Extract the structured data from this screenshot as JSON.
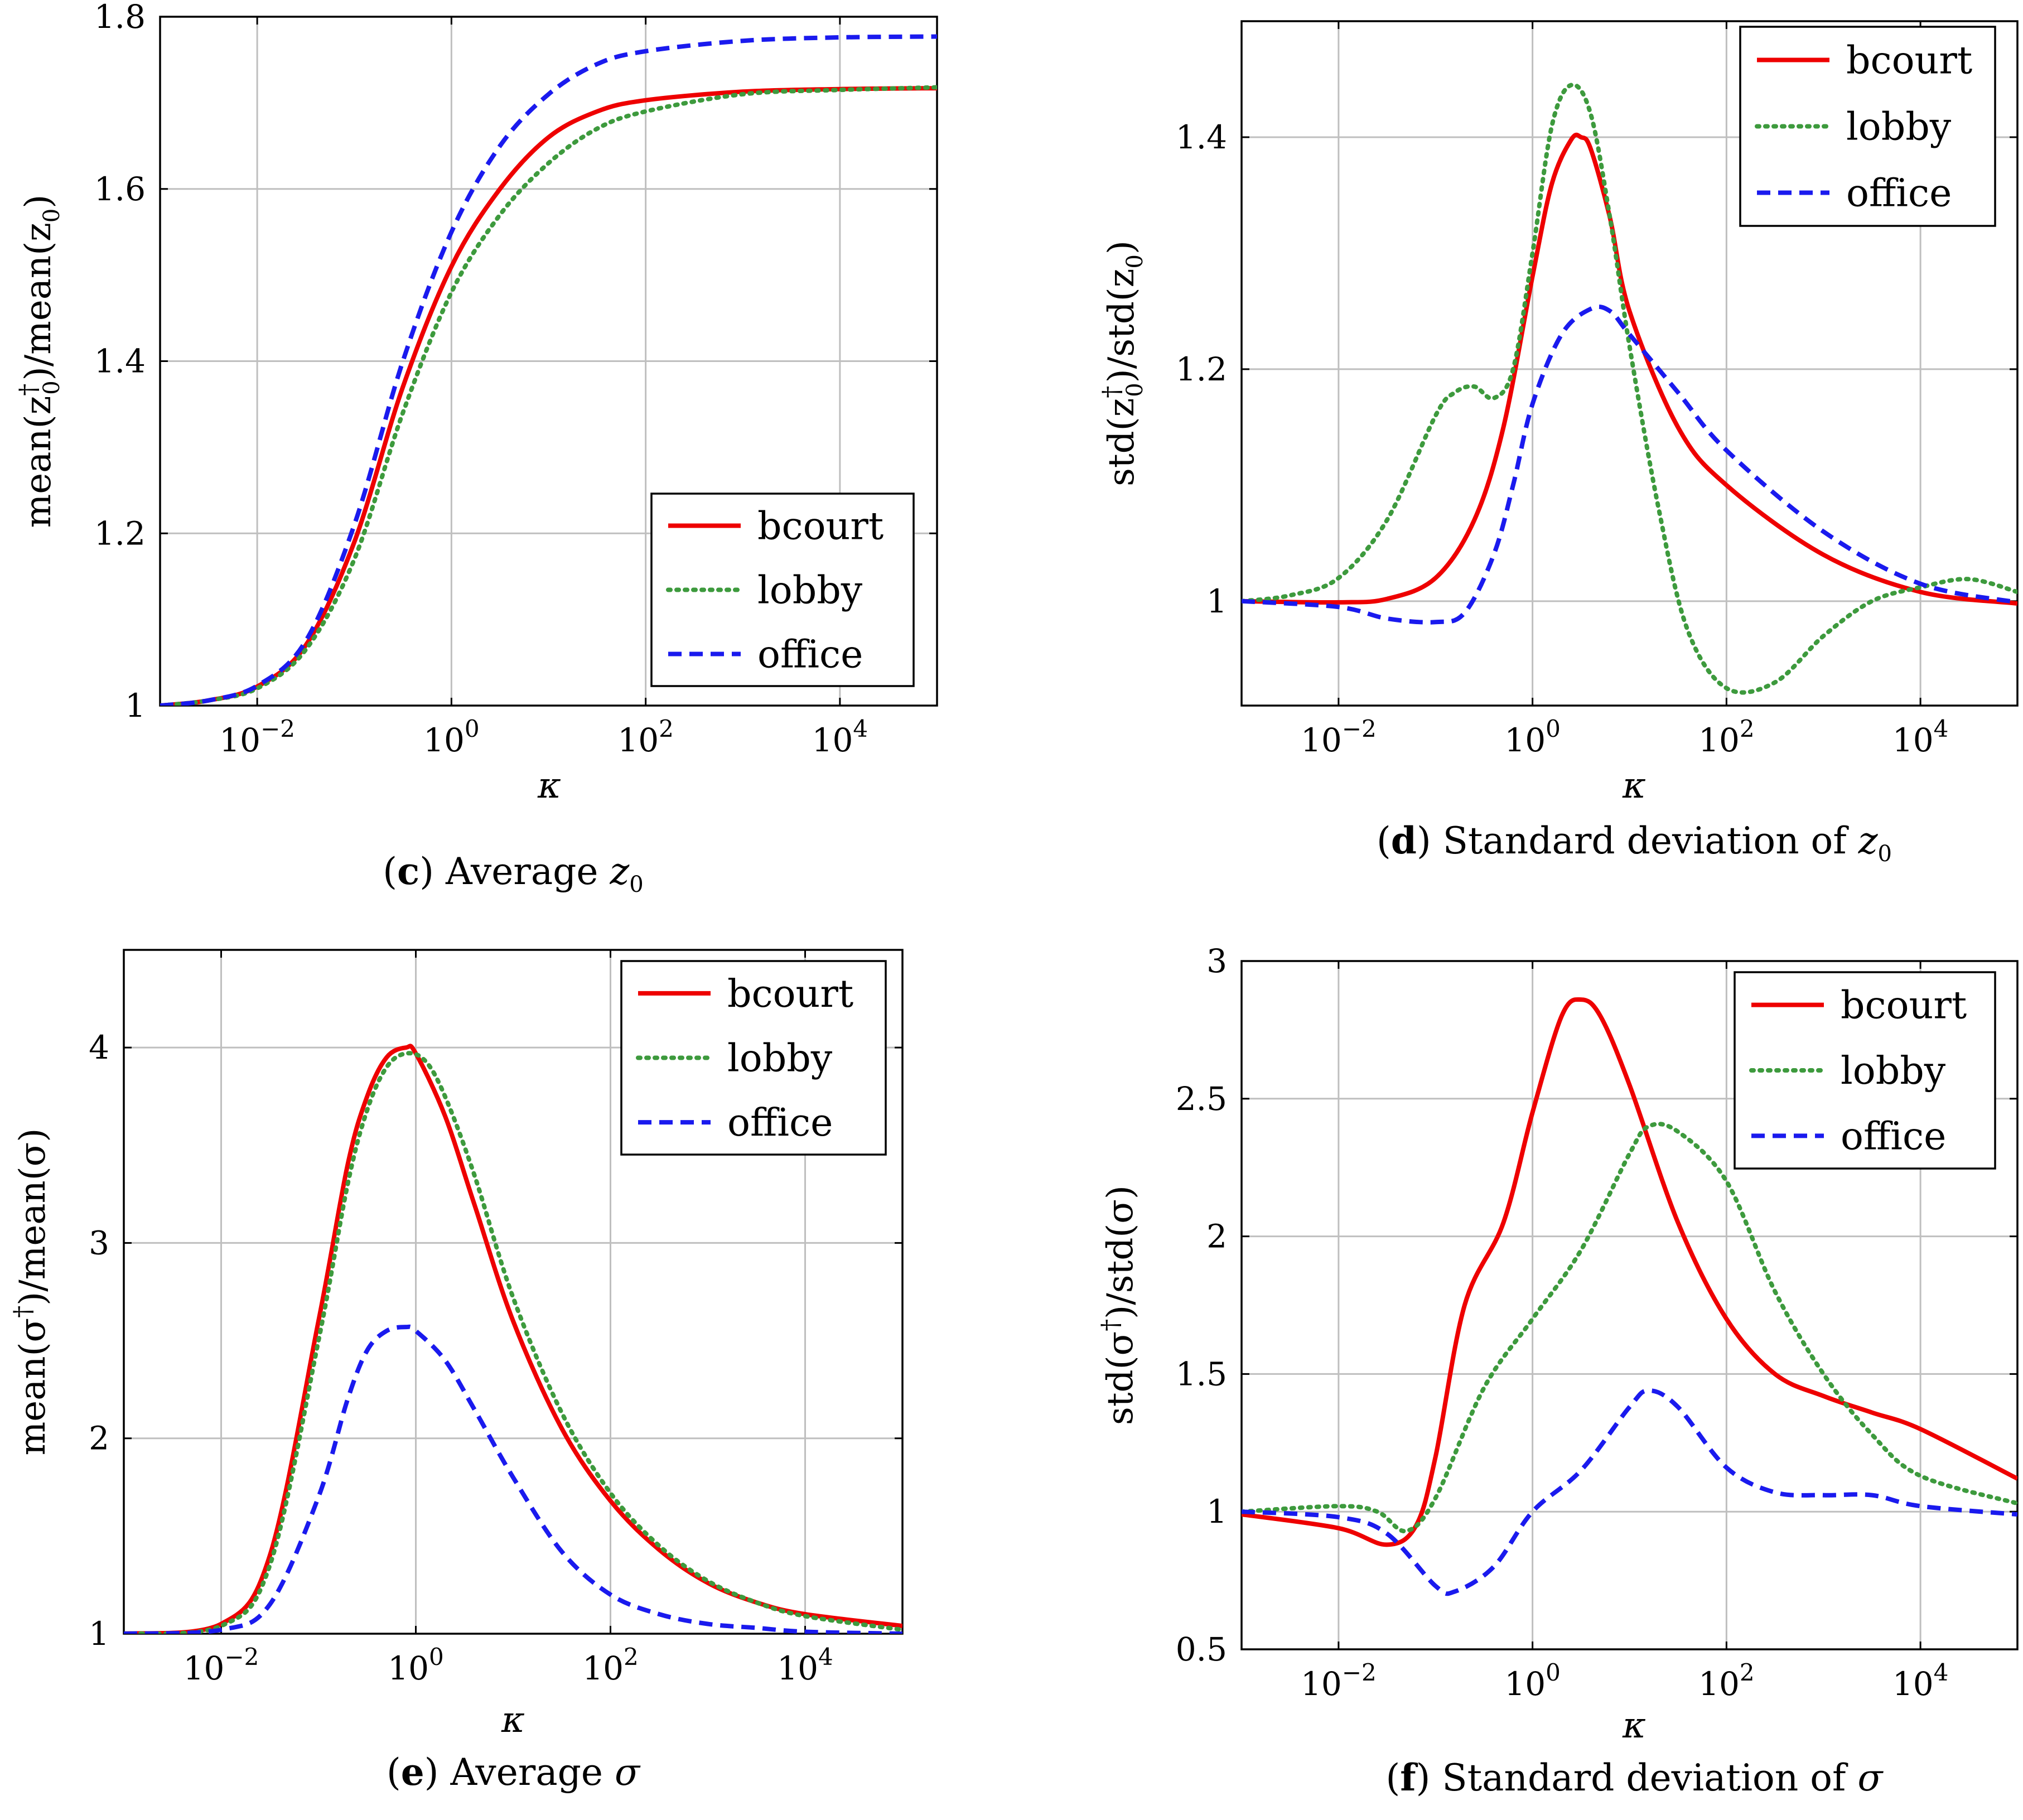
{
  "colors": {
    "bcourt": "#ee0000",
    "lobby": "#3d9a3d",
    "office": "#1a1aee"
  },
  "legend": [
    "bcourt",
    "lobby",
    "office"
  ],
  "chart_data": [
    {
      "id": "c",
      "type": "line",
      "caption_letter": "c",
      "caption_text": "Average z",
      "caption_sub": "0",
      "xlabel": "κ",
      "ylabel_pre": "mean(z",
      "ylabel_sub": "0",
      "ylabel_sup": "†",
      "ylabel_post": ")/mean(z",
      "ylabel_sub2": "0",
      "ylabel_end": ")",
      "x_scale": "log10",
      "xlim_exp": [
        -3,
        5
      ],
      "ylim": [
        1,
        1.8
      ],
      "x_ticks_exp": [
        -2,
        0,
        2,
        4
      ],
      "y_ticks": [
        1,
        1.2,
        1.4,
        1.6,
        1.8
      ],
      "y_tick_labels": [
        "1",
        "1.2",
        "1.4",
        "1.6",
        "1.8"
      ],
      "legend_position": "bottom-right",
      "series": [
        {
          "name": "bcourt",
          "style": "solid",
          "log10_x": [
            -3,
            -2.5,
            -2,
            -1.5,
            -1,
            -0.5,
            0,
            0.5,
            1,
            1.5,
            2,
            3,
            4,
            5
          ],
          "y": [
            1.0,
            1.006,
            1.022,
            1.07,
            1.19,
            1.37,
            1.51,
            1.6,
            1.66,
            1.69,
            1.703,
            1.713,
            1.716,
            1.717
          ]
        },
        {
          "name": "lobby",
          "style": "dotted",
          "log10_x": [
            -3,
            -2.5,
            -2,
            -1.5,
            -1,
            -0.5,
            0,
            0.5,
            1,
            1.5,
            2,
            3,
            4,
            5
          ],
          "y": [
            1.0,
            1.006,
            1.02,
            1.065,
            1.17,
            1.34,
            1.48,
            1.57,
            1.63,
            1.67,
            1.69,
            1.71,
            1.715,
            1.718
          ]
        },
        {
          "name": "office",
          "style": "dashed",
          "log10_x": [
            -3,
            -2.5,
            -2,
            -1.5,
            -1,
            -0.5,
            0,
            0.5,
            1,
            1.5,
            2,
            3,
            4,
            5
          ],
          "y": [
            1.0,
            1.006,
            1.023,
            1.075,
            1.21,
            1.4,
            1.55,
            1.65,
            1.71,
            1.745,
            1.76,
            1.772,
            1.776,
            1.777
          ]
        }
      ]
    },
    {
      "id": "d",
      "type": "line",
      "caption_letter": "d",
      "caption_text": "Standard deviation of z",
      "caption_sub": "0",
      "xlabel": "κ",
      "ylabel_pre": "std(z",
      "ylabel_sub": "0",
      "ylabel_sup": "†",
      "ylabel_post": ")/std(z",
      "ylabel_sub2": "0",
      "ylabel_end": ")",
      "x_scale": "log10",
      "xlim_exp": [
        -3,
        5
      ],
      "ylim": [
        0.91,
        1.5
      ],
      "x_ticks_exp": [
        -2,
        0,
        2,
        4
      ],
      "y_ticks": [
        1,
        1.2,
        1.4
      ],
      "y_tick_labels": [
        "1",
        "1.2",
        "1.4"
      ],
      "legend_position": "top-right",
      "series": [
        {
          "name": "bcourt",
          "style": "solid",
          "log10_x": [
            -3,
            -2,
            -1.5,
            -1,
            -0.6,
            -0.3,
            0,
            0.2,
            0.4,
            0.5,
            0.6,
            0.8,
            1,
            1.5,
            2,
            3,
            4,
            5
          ],
          "y": [
            1.0,
            0.999,
            1.002,
            1.02,
            1.07,
            1.15,
            1.28,
            1.36,
            1.398,
            1.4,
            1.39,
            1.33,
            1.25,
            1.15,
            1.1,
            1.04,
            1.008,
            0.998
          ]
        },
        {
          "name": "lobby",
          "style": "dotted",
          "log10_x": [
            -3,
            -2.5,
            -2,
            -1.5,
            -1,
            -0.8,
            -0.6,
            -0.4,
            -0.2,
            0,
            0.2,
            0.4,
            0.6,
            0.8,
            1,
            1.3,
            1.6,
            2,
            2.5,
            3,
            3.5,
            4,
            4.5,
            5
          ],
          "y": [
            1.0,
            1.005,
            1.02,
            1.07,
            1.16,
            1.18,
            1.185,
            1.175,
            1.2,
            1.3,
            1.41,
            1.445,
            1.42,
            1.33,
            1.22,
            1.08,
            0.975,
            0.925,
            0.93,
            0.97,
            1.0,
            1.012,
            1.019,
            1.008
          ]
        },
        {
          "name": "office",
          "style": "dashed",
          "log10_x": [
            -3,
            -2,
            -1.5,
            -1,
            -0.7,
            -0.4,
            -0.2,
            0,
            0.3,
            0.6,
            0.8,
            1,
            1.5,
            2,
            3,
            4,
            5
          ],
          "y": [
            1.0,
            0.995,
            0.985,
            0.982,
            0.99,
            1.04,
            1.1,
            1.17,
            1.23,
            1.252,
            1.25,
            1.23,
            1.18,
            1.13,
            1.06,
            1.015,
            0.999
          ]
        }
      ]
    },
    {
      "id": "e",
      "type": "line",
      "caption_letter": "e",
      "caption_text": "Average σ",
      "caption_sub": "",
      "xlabel": "κ",
      "ylabel_pre": "mean(σ",
      "ylabel_sub": "",
      "ylabel_sup": "†",
      "ylabel_post": ")/mean(σ",
      "ylabel_sub2": "",
      "ylabel_end": ")",
      "x_scale": "log10",
      "xlim_exp": [
        -3,
        5
      ],
      "ylim": [
        1,
        4.5
      ],
      "x_ticks_exp": [
        -2,
        0,
        2,
        4
      ],
      "y_ticks": [
        1,
        2,
        3,
        4
      ],
      "y_tick_labels": [
        "1",
        "2",
        "3",
        "4"
      ],
      "legend_position": "top-right",
      "series": [
        {
          "name": "bcourt",
          "style": "solid",
          "log10_x": [
            -3,
            -2,
            -1.5,
            -1,
            -0.7,
            -0.5,
            -0.3,
            -0.1,
            0,
            0.3,
            0.6,
            1,
            1.5,
            2,
            2.5,
            3,
            3.5,
            4,
            5
          ],
          "y": [
            1.0,
            1.05,
            1.4,
            2.6,
            3.4,
            3.75,
            3.95,
            4.0,
            3.97,
            3.65,
            3.2,
            2.6,
            2.05,
            1.68,
            1.43,
            1.26,
            1.16,
            1.1,
            1.04
          ]
        },
        {
          "name": "lobby",
          "style": "dotted",
          "log10_x": [
            -3,
            -2,
            -1.5,
            -1,
            -0.7,
            -0.5,
            -0.3,
            -0.1,
            0.1,
            0.3,
            0.6,
            1,
            1.5,
            2,
            2.5,
            3,
            3.5,
            4,
            5
          ],
          "y": [
            1.0,
            1.04,
            1.35,
            2.5,
            3.3,
            3.68,
            3.9,
            3.97,
            3.93,
            3.75,
            3.35,
            2.72,
            2.13,
            1.72,
            1.45,
            1.27,
            1.16,
            1.09,
            1.02
          ]
        },
        {
          "name": "office",
          "style": "dashed",
          "log10_x": [
            -3,
            -2,
            -1.5,
            -1,
            -0.7,
            -0.5,
            -0.3,
            -0.1,
            0,
            0.3,
            0.6,
            1,
            1.5,
            2,
            2.5,
            3,
            3.5,
            4,
            5
          ],
          "y": [
            1.0,
            1.02,
            1.15,
            1.7,
            2.2,
            2.45,
            2.55,
            2.57,
            2.55,
            2.4,
            2.15,
            1.8,
            1.42,
            1.2,
            1.1,
            1.05,
            1.03,
            1.01,
            1.0
          ]
        }
      ]
    },
    {
      "id": "f",
      "type": "line",
      "caption_letter": "f",
      "caption_text": "Standard deviation of σ",
      "caption_sub": "",
      "xlabel": "κ",
      "ylabel_pre": "std(σ",
      "ylabel_sub": "",
      "ylabel_sup": "†",
      "ylabel_post": ")/std(σ",
      "ylabel_sub2": "",
      "ylabel_end": ")",
      "x_scale": "log10",
      "xlim_exp": [
        -3,
        5
      ],
      "ylim": [
        0.5,
        3
      ],
      "x_ticks_exp": [
        -2,
        0,
        2,
        4
      ],
      "y_ticks": [
        0.5,
        1,
        1.5,
        2,
        2.5,
        3
      ],
      "y_tick_labels": [
        "0.5",
        "1",
        "1.5",
        "2",
        "2.5",
        "3"
      ],
      "legend_position": "top-right",
      "series": [
        {
          "name": "bcourt",
          "style": "solid",
          "log10_x": [
            -3,
            -2,
            -1.5,
            -1.2,
            -1,
            -0.7,
            -0.3,
            0,
            0.3,
            0.5,
            0.7,
            1,
            1.5,
            2,
            2.5,
            3,
            3.5,
            4,
            5
          ],
          "y": [
            0.99,
            0.94,
            0.88,
            0.95,
            1.2,
            1.75,
            2.05,
            2.45,
            2.8,
            2.86,
            2.8,
            2.55,
            2.05,
            1.7,
            1.5,
            1.42,
            1.36,
            1.3,
            1.12
          ]
        },
        {
          "name": "lobby",
          "style": "dotted",
          "log10_x": [
            -3,
            -2,
            -1.6,
            -1.3,
            -1,
            -0.5,
            0,
            0.5,
            1,
            1.2,
            1.5,
            2,
            2.5,
            3,
            3.5,
            4,
            5
          ],
          "y": [
            1.0,
            1.02,
            1.0,
            0.93,
            1.05,
            1.45,
            1.7,
            1.95,
            2.3,
            2.4,
            2.38,
            2.2,
            1.8,
            1.5,
            1.28,
            1.13,
            1.03
          ]
        },
        {
          "name": "office",
          "style": "dashed",
          "log10_x": [
            -3,
            -2,
            -1.5,
            -1,
            -0.8,
            -0.4,
            0,
            0.5,
            1,
            1.2,
            1.5,
            2,
            2.5,
            3,
            3.5,
            4,
            5
          ],
          "y": [
            1.0,
            0.98,
            0.92,
            0.73,
            0.71,
            0.8,
            1.0,
            1.15,
            1.38,
            1.44,
            1.38,
            1.16,
            1.07,
            1.06,
            1.06,
            1.02,
            0.99
          ]
        }
      ]
    }
  ]
}
